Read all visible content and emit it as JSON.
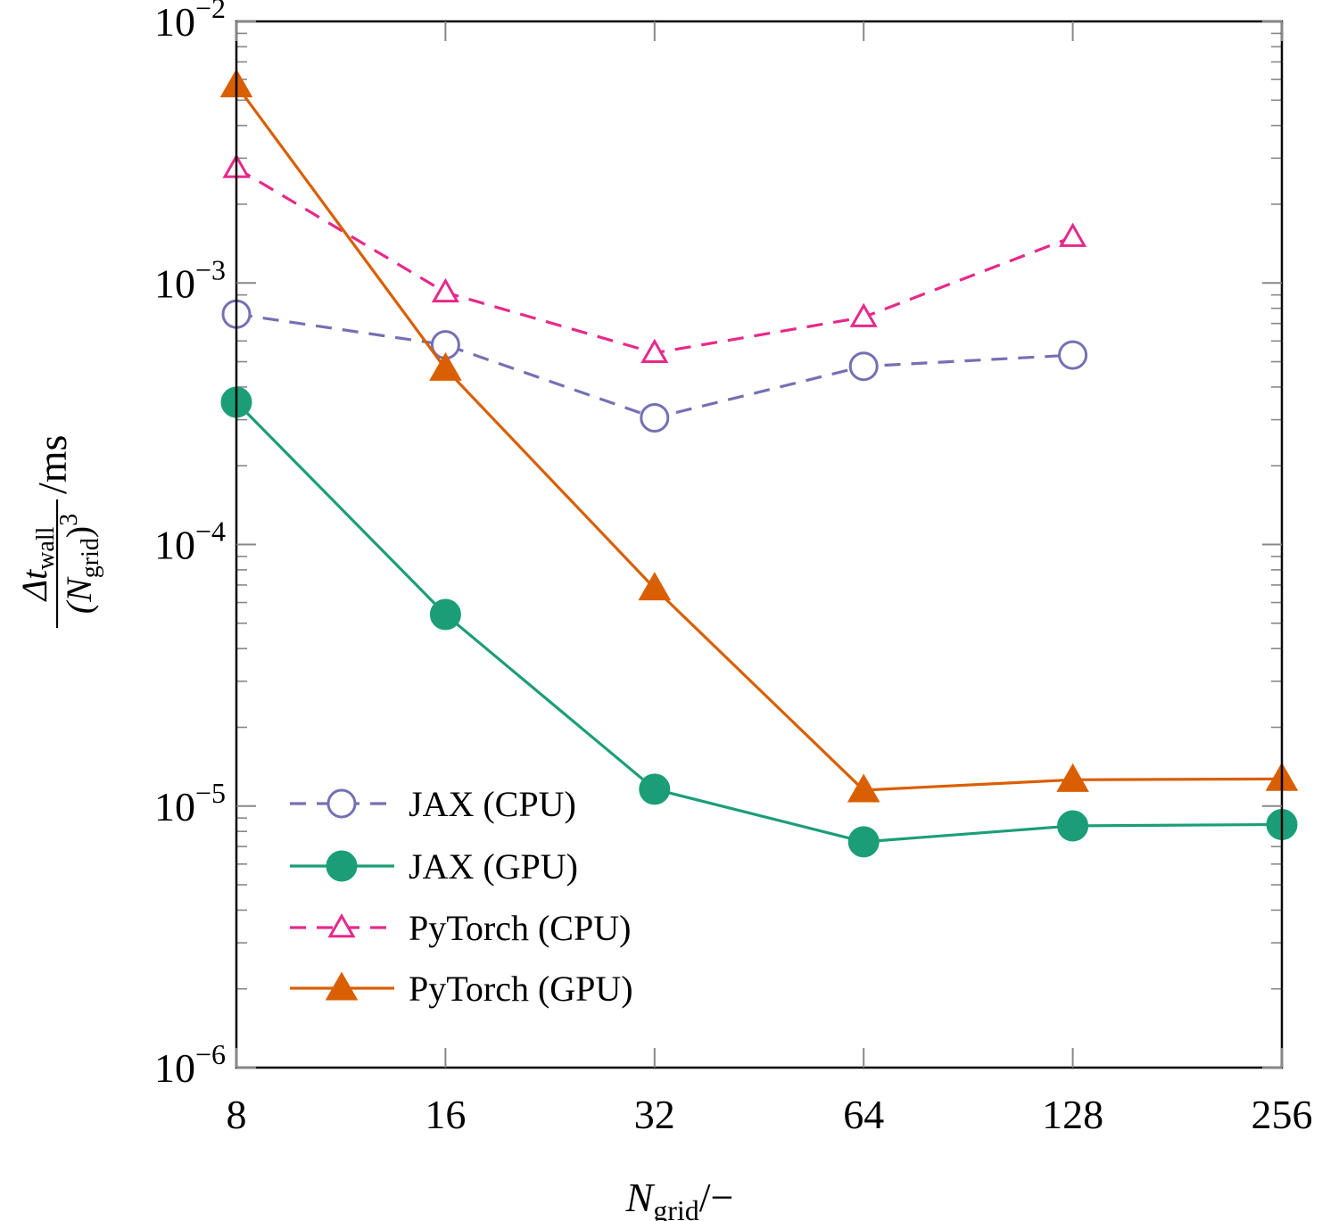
{
  "chart_data": {
    "type": "line",
    "x_scale": "log2",
    "y_scale": "log10",
    "xlim": [
      8,
      256
    ],
    "ylim": [
      1e-06,
      0.01
    ],
    "x_ticks": [
      {
        "value": 8,
        "label": "8"
      },
      {
        "value": 16,
        "label": "16"
      },
      {
        "value": 32,
        "label": "32"
      },
      {
        "value": 64,
        "label": "64"
      },
      {
        "value": 128,
        "label": "128"
      },
      {
        "value": 256,
        "label": "256"
      }
    ],
    "y_ticks": [
      {
        "value": 1e-06,
        "base": "10",
        "exp": "−6"
      },
      {
        "value": 1e-05,
        "base": "10",
        "exp": "−5"
      },
      {
        "value": 0.0001,
        "base": "10",
        "exp": "−4"
      },
      {
        "value": 0.001,
        "base": "10",
        "exp": "−3"
      },
      {
        "value": 0.01,
        "base": "10",
        "exp": "−2"
      }
    ],
    "xlabel": {
      "main": "N",
      "sub": "grid",
      "suffix": "/−"
    },
    "ylabel": {
      "numerator": "Δt",
      "numerator_sub": "wall",
      "denominator_open": "(N",
      "denominator_sub": "grid",
      "denominator_close": ")",
      "denominator_exp": "3",
      "unit": "/ms"
    },
    "legend_position": "bottom-left",
    "grid": false,
    "series": [
      {
        "name": "JAX (CPU)",
        "color": "#7570b3",
        "dash": "dashed",
        "marker": "circle-open",
        "x": [
          8,
          16,
          32,
          64,
          128
        ],
        "y": [
          0.00076,
          0.00058,
          0.000305,
          0.00048,
          0.00053
        ]
      },
      {
        "name": "JAX (GPU)",
        "color": "#1b9e77",
        "dash": "solid",
        "marker": "circle-filled",
        "x": [
          8,
          16,
          32,
          64,
          128,
          256
        ],
        "y": [
          0.00035,
          5.4e-05,
          1.16e-05,
          7.3e-06,
          8.4e-06,
          8.5e-06
        ]
      },
      {
        "name": "PyTorch (CPU)",
        "color": "#e7298a",
        "dash": "dashed",
        "marker": "triangle-open",
        "x": [
          8,
          16,
          32,
          64,
          128
        ],
        "y": [
          0.00275,
          0.00092,
          0.00054,
          0.00074,
          0.0015
        ]
      },
      {
        "name": "PyTorch (GPU)",
        "color": "#d95f02",
        "dash": "solid",
        "marker": "triangle-filled",
        "x": [
          8,
          16,
          32,
          64,
          128,
          256
        ],
        "y": [
          0.0057,
          0.00047,
          6.8e-05,
          1.15e-05,
          1.26e-05,
          1.27e-05
        ]
      }
    ]
  }
}
